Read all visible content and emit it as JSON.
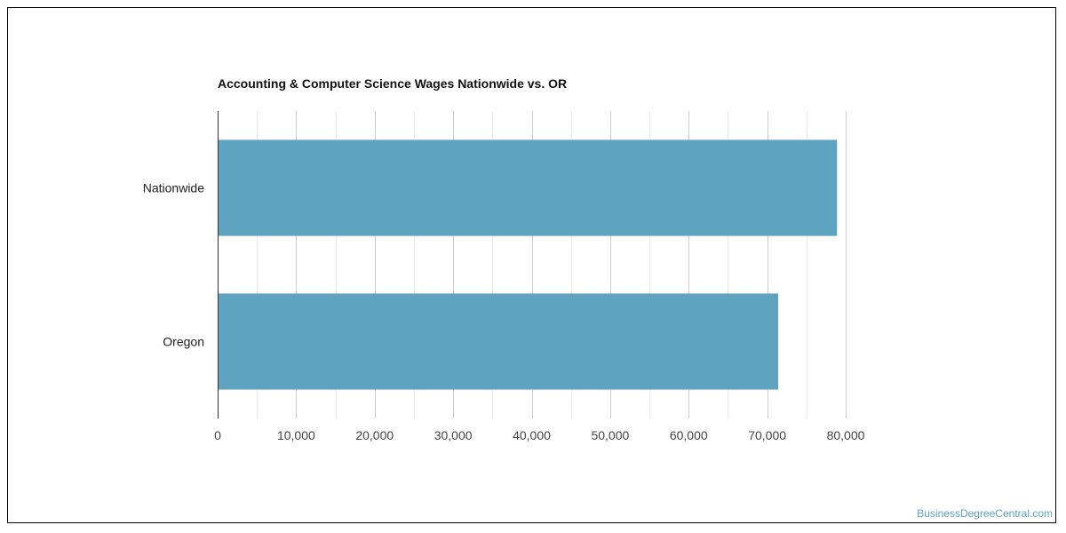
{
  "chart_data": {
    "type": "bar",
    "orientation": "horizontal",
    "title": "Accounting & Computer Science Wages Nationwide vs. OR",
    "categories": [
      "Nationwide",
      "Oregon"
    ],
    "values": [
      78900,
      71400
    ],
    "xlim": [
      0,
      80000
    ],
    "xticks": [
      0,
      10000,
      20000,
      30000,
      40000,
      50000,
      60000,
      70000,
      80000
    ],
    "xtick_labels": [
      "0",
      "10,000",
      "20,000",
      "30,000",
      "40,000",
      "50,000",
      "60,000",
      "70,000",
      "80,000"
    ],
    "grid": true,
    "bar_color": "#5ea3c0"
  },
  "watermark": "BusinessDegreeCentral.com"
}
